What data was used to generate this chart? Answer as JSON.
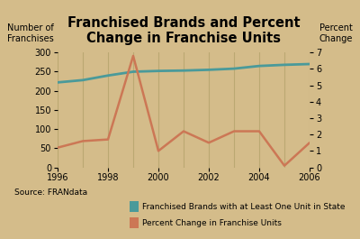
{
  "title": "Franchised Brands and Percent\nChange in Franchise Units",
  "ylabel_left": "Number of\nFranchises",
  "ylabel_right": "Percent\nChange",
  "source": "Source: FRANdata",
  "legend1": "Franchised Brands with at Least One Unit in State",
  "legend2": "Percent Change in Franchise Units",
  "x_years": [
    1996,
    1997,
    1998,
    1999,
    2000,
    2001,
    2002,
    2003,
    2004,
    2005,
    2006
  ],
  "brands": [
    222,
    228,
    240,
    250,
    252,
    253,
    255,
    258,
    265,
    268,
    270
  ],
  "pct_change": [
    1.2,
    1.6,
    1.7,
    6.8,
    1.0,
    2.2,
    1.5,
    2.2,
    2.2,
    0.1,
    1.5
  ],
  "teal_color": "#4a9a9a",
  "orange_color": "#cc7755",
  "bg_color": "#d4bc8a",
  "grid_color": "#bba872",
  "left_ylim": [
    0,
    300
  ],
  "right_ylim": [
    0,
    7
  ],
  "left_yticks": [
    0,
    50,
    100,
    150,
    200,
    250,
    300
  ],
  "right_yticks": [
    0,
    1,
    2,
    3,
    4,
    5,
    6,
    7
  ],
  "xticks": [
    1996,
    1998,
    2000,
    2002,
    2004,
    2006
  ],
  "title_fontsize": 10.5,
  "axis_label_fontsize": 7,
  "tick_fontsize": 7,
  "legend_fontsize": 6.5,
  "source_fontsize": 6.5
}
